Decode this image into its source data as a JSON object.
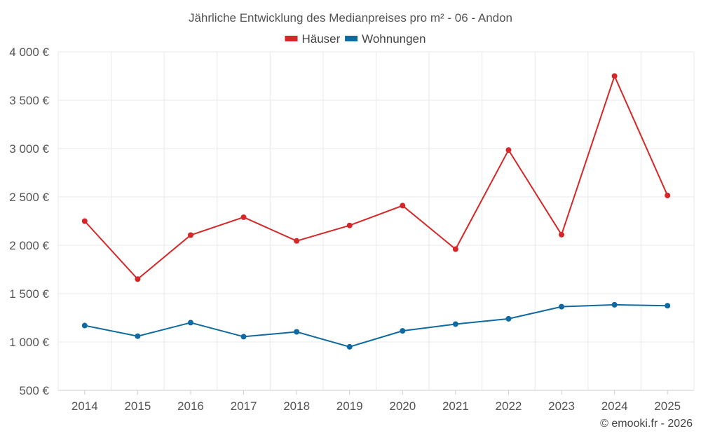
{
  "chart_data": {
    "type": "line",
    "title": "Jährliche Entwicklung des Medianpreises pro m² - 06 - Andon",
    "x": [
      "2014",
      "2015",
      "2016",
      "2017",
      "2018",
      "2019",
      "2020",
      "2021",
      "2022",
      "2023",
      "2024",
      "2025"
    ],
    "series": [
      {
        "name": "Häuser",
        "color": "#d62728",
        "values": [
          2250,
          1650,
          2105,
          2290,
          2045,
          2205,
          2410,
          1960,
          2985,
          2110,
          3750,
          2515
        ]
      },
      {
        "name": "Wohnungen",
        "color": "#0e6aa0",
        "values": [
          1170,
          1060,
          1200,
          1055,
          1105,
          950,
          1115,
          1185,
          1240,
          1365,
          1385,
          1375
        ]
      }
    ],
    "ylim": [
      500,
      4000
    ],
    "yticks": [
      500,
      1000,
      1500,
      2000,
      2500,
      3000,
      3500,
      4000
    ],
    "ytick_labels": [
      "500 €",
      "1 000 €",
      "1 500 €",
      "2 000 €",
      "2 500 €",
      "3 000 €",
      "3 500 €",
      "4 000 €"
    ],
    "xlabel": "",
    "ylabel": "",
    "grid": true,
    "legend_position": "top-center"
  },
  "credit": "© emooki.fr - 2026"
}
